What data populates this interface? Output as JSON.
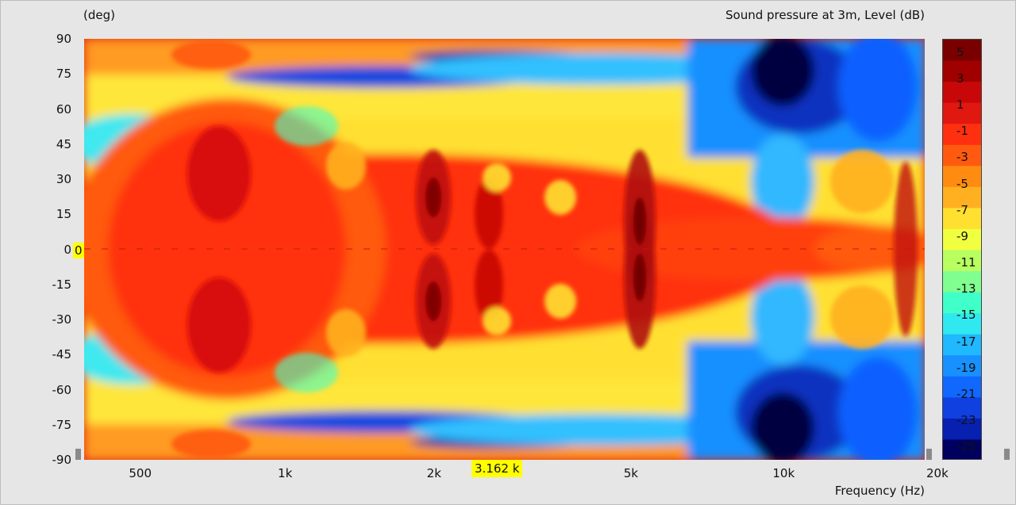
{
  "chart_data": {
    "type": "heatmap",
    "title": "Sound pressure at 3m, Level  (dB)",
    "ylabel": "(deg)",
    "xlabel": "Frequency  (Hz)",
    "x_scale": "log",
    "xlim": [
      400,
      20000
    ],
    "ylim": [
      -90,
      90
    ],
    "x_ticks": [
      {
        "label": "500",
        "value": 500
      },
      {
        "label": "1k",
        "value": 1000
      },
      {
        "label": "2k",
        "value": 2000
      },
      {
        "label": "5k",
        "value": 5000
      },
      {
        "label": "10k",
        "value": 10000
      },
      {
        "label": "20k",
        "value": 20000
      }
    ],
    "y_ticks": [
      90,
      75,
      60,
      45,
      30,
      15,
      0,
      -15,
      -30,
      -45,
      -60,
      -75,
      -90
    ],
    "colorbar": {
      "labels": [
        "5",
        "3",
        "1",
        "-1",
        "-3",
        "-5",
        "-7",
        "-9",
        "-11",
        "-13",
        "-15",
        "-17",
        "-19",
        "-21",
        "-23",
        "-25"
      ],
      "range": [
        -26,
        6
      ]
    },
    "cursor": {
      "x_label": "3.162 k",
      "y_label": "0"
    }
  }
}
